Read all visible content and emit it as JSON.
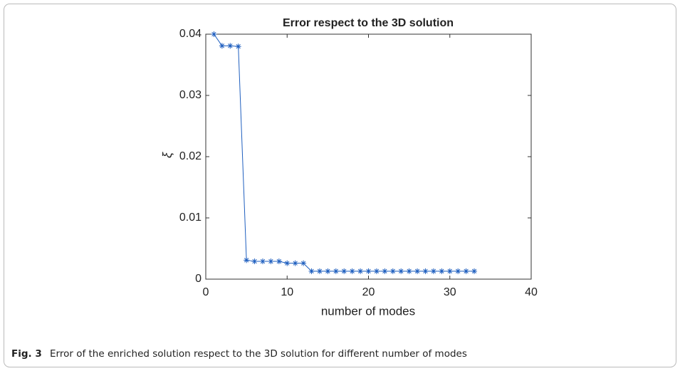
{
  "chart_data": {
    "type": "line",
    "title": "Error respect to the 3D solution",
    "xlabel": "number of modes",
    "ylabel": "ξ",
    "x": [
      1,
      2,
      3,
      4,
      5,
      6,
      7,
      8,
      9,
      10,
      11,
      12,
      13,
      14,
      15,
      16,
      17,
      18,
      19,
      20,
      21,
      22,
      23,
      24,
      25,
      26,
      27,
      28,
      29,
      30,
      31,
      32,
      33
    ],
    "series": [
      {
        "name": "error",
        "color": "#1f5fbf",
        "marker": "*",
        "values": [
          0.04,
          0.0381,
          0.0381,
          0.038,
          0.0031,
          0.0029,
          0.0029,
          0.0029,
          0.0029,
          0.0026,
          0.0026,
          0.0026,
          0.0013,
          0.0013,
          0.0013,
          0.0013,
          0.0013,
          0.0013,
          0.0013,
          0.0013,
          0.0013,
          0.0013,
          0.0013,
          0.0013,
          0.0013,
          0.0013,
          0.0013,
          0.0013,
          0.0013,
          0.0013,
          0.0013,
          0.0013,
          0.0013
        ]
      }
    ],
    "xlim": [
      0,
      40
    ],
    "xticks": [
      0,
      10,
      20,
      30,
      40
    ],
    "ylim": [
      0,
      0.04
    ],
    "yticks": [
      0,
      0.01,
      0.02,
      0.03,
      0.04
    ]
  },
  "caption": {
    "label": "Fig. 3",
    "text": "Error of the enriched solution respect to the 3D solution for different number of modes"
  }
}
